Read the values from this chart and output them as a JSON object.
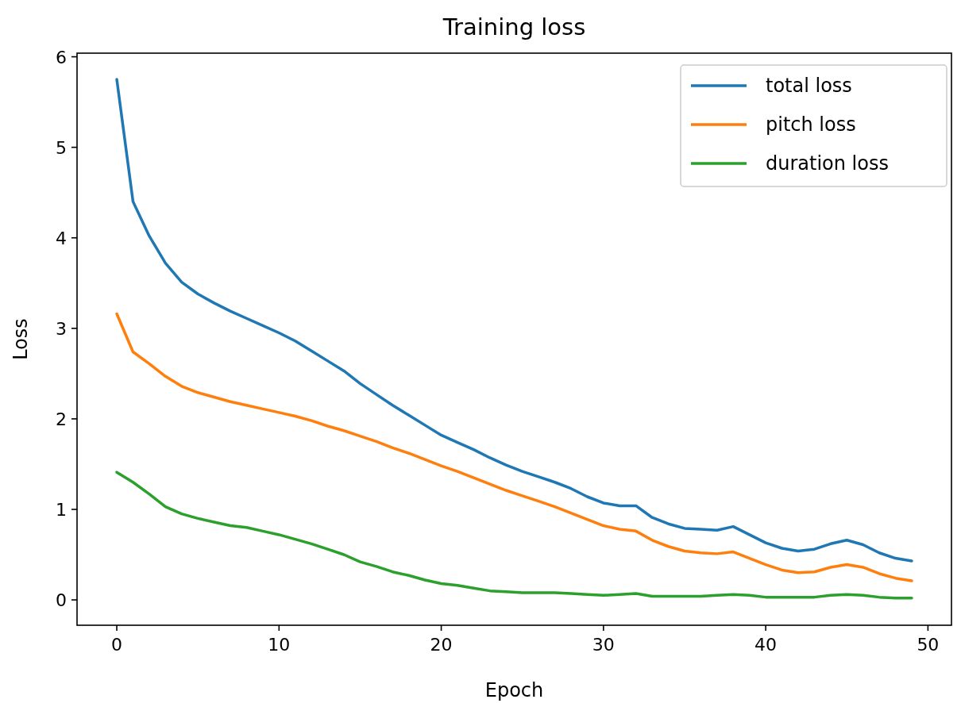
{
  "chart_data": {
    "type": "line",
    "title": "Training loss",
    "xlabel": "Epoch",
    "ylabel": "Loss",
    "x": [
      0,
      1,
      2,
      3,
      4,
      5,
      6,
      7,
      8,
      9,
      10,
      11,
      12,
      13,
      14,
      15,
      16,
      17,
      18,
      19,
      20,
      21,
      22,
      23,
      24,
      25,
      26,
      27,
      28,
      29,
      30,
      31,
      32,
      33,
      34,
      35,
      36,
      37,
      38,
      39,
      40,
      41,
      42,
      43,
      44,
      45,
      46,
      47,
      48,
      49
    ],
    "series": [
      {
        "name": "total loss",
        "color": "#1f77b4",
        "values": [
          5.75,
          4.4,
          4.02,
          3.72,
          3.51,
          3.38,
          3.28,
          3.19,
          3.11,
          3.03,
          2.95,
          2.86,
          2.75,
          2.64,
          2.53,
          2.39,
          2.27,
          2.15,
          2.04,
          1.93,
          1.82,
          1.74,
          1.66,
          1.57,
          1.49,
          1.42,
          1.36,
          1.3,
          1.23,
          1.14,
          1.07,
          1.04,
          1.04,
          0.91,
          0.84,
          0.79,
          0.78,
          0.77,
          0.81,
          0.72,
          0.63,
          0.57,
          0.54,
          0.56,
          0.62,
          0.66,
          0.61,
          0.52,
          0.46,
          0.43
        ]
      },
      {
        "name": "pitch loss",
        "color": "#ff7f0e",
        "values": [
          3.16,
          2.74,
          2.61,
          2.47,
          2.36,
          2.29,
          2.24,
          2.19,
          2.15,
          2.11,
          2.07,
          2.03,
          1.98,
          1.92,
          1.87,
          1.81,
          1.75,
          1.68,
          1.62,
          1.55,
          1.48,
          1.42,
          1.35,
          1.28,
          1.21,
          1.15,
          1.09,
          1.03,
          0.96,
          0.89,
          0.82,
          0.78,
          0.76,
          0.66,
          0.59,
          0.54,
          0.52,
          0.51,
          0.53,
          0.46,
          0.39,
          0.33,
          0.3,
          0.31,
          0.36,
          0.39,
          0.36,
          0.29,
          0.24,
          0.21
        ]
      },
      {
        "name": "duration loss",
        "color": "#2ca02c",
        "values": [
          1.41,
          1.3,
          1.17,
          1.03,
          0.95,
          0.9,
          0.86,
          0.82,
          0.8,
          0.76,
          0.72,
          0.67,
          0.62,
          0.56,
          0.5,
          0.42,
          0.37,
          0.31,
          0.27,
          0.22,
          0.18,
          0.16,
          0.13,
          0.1,
          0.09,
          0.08,
          0.08,
          0.08,
          0.07,
          0.06,
          0.05,
          0.06,
          0.07,
          0.04,
          0.04,
          0.04,
          0.04,
          0.05,
          0.06,
          0.05,
          0.03,
          0.03,
          0.03,
          0.03,
          0.05,
          0.06,
          0.05,
          0.03,
          0.02,
          0.02
        ]
      }
    ],
    "xlim": [
      -2.45,
      51.45
    ],
    "xticks": [
      0,
      10,
      20,
      30,
      40,
      50
    ],
    "ylim": [
      -0.28,
      6.04
    ],
    "yticks": [
      0,
      1,
      2,
      3,
      4,
      5,
      6
    ],
    "grid": false,
    "legend": "top right",
    "marker": "none",
    "line_style": "solid"
  }
}
